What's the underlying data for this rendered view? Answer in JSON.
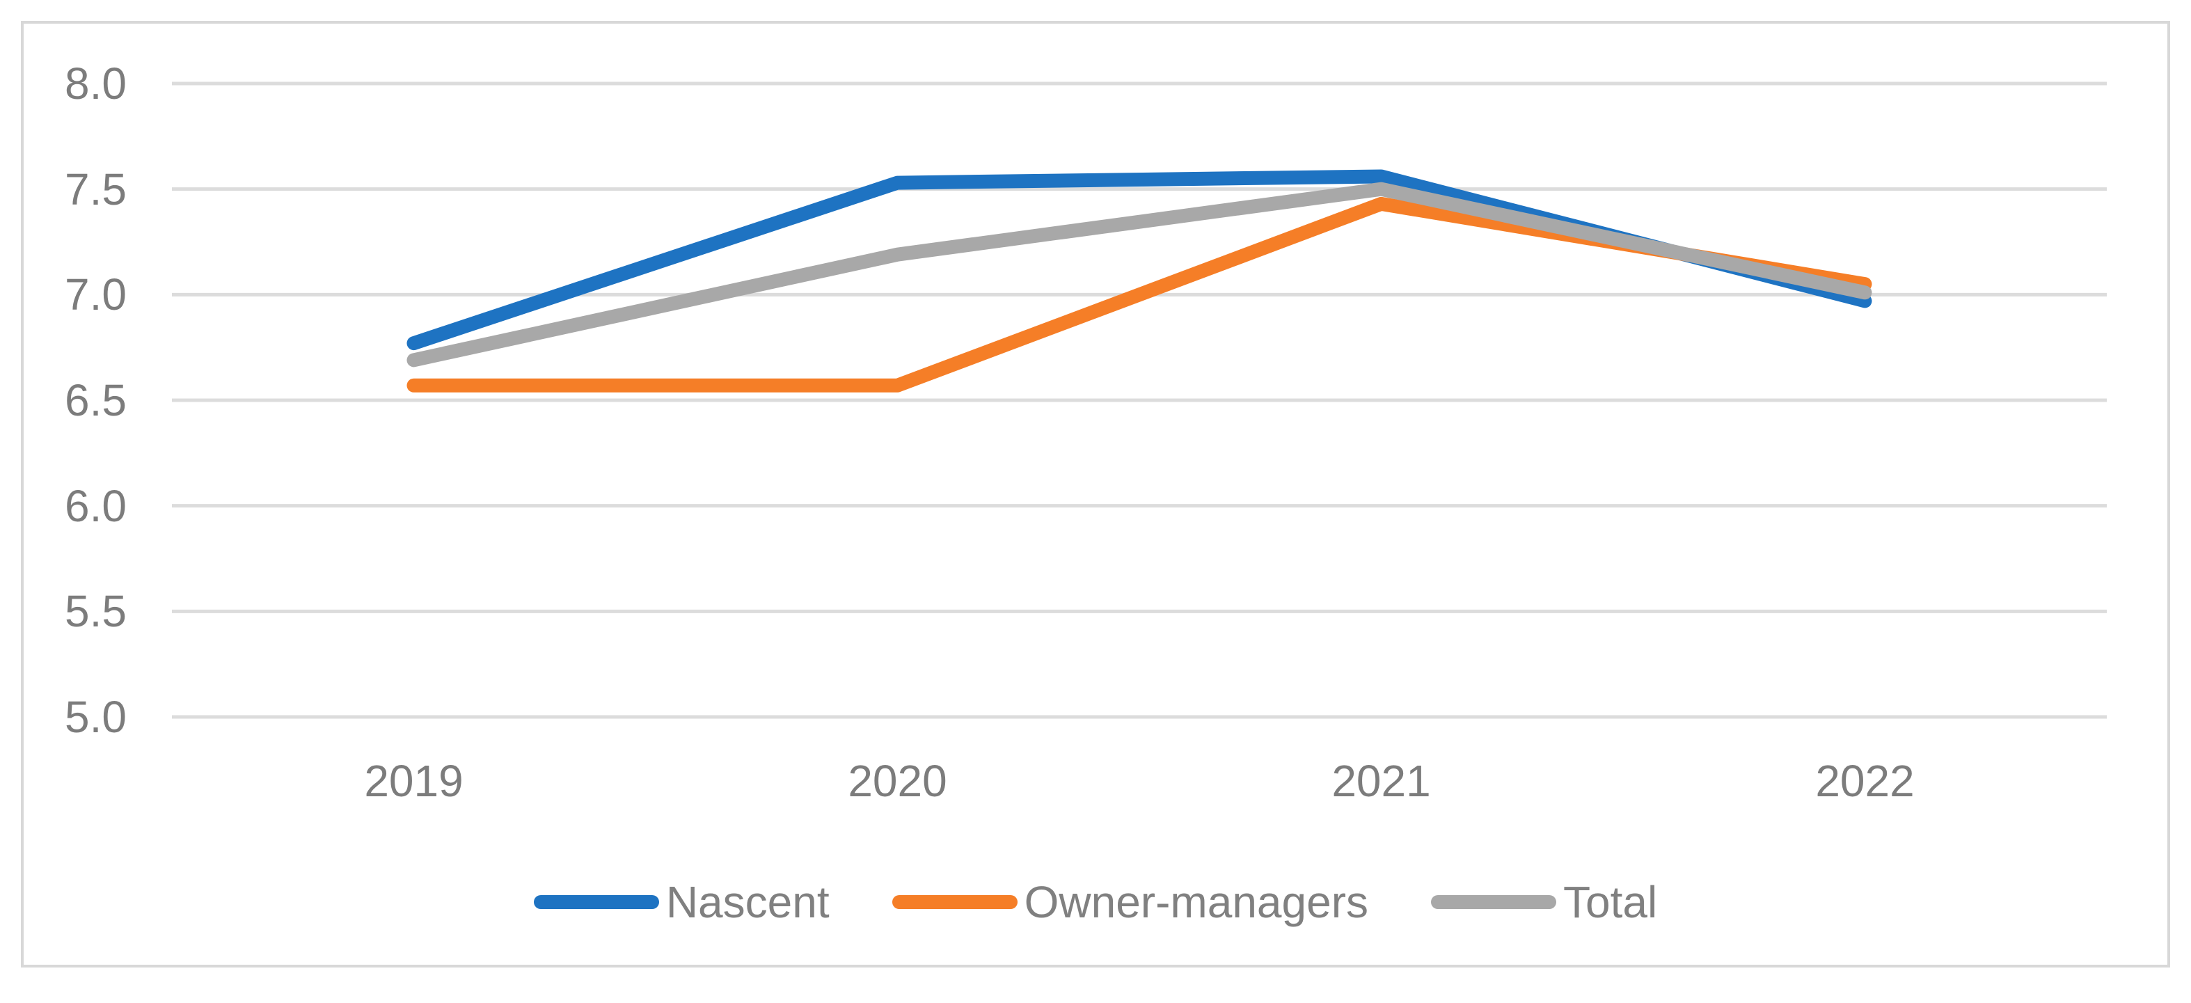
{
  "chart_data": {
    "type": "line",
    "title": "",
    "categories": [
      "2019",
      "2020",
      "2021",
      "2022"
    ],
    "series": [
      {
        "name": "Nascent",
        "color": "#1E73C2",
        "values": [
          6.77,
          7.53,
          7.56,
          6.97
        ]
      },
      {
        "name": "Owner-managers",
        "color": "#F57E27",
        "values": [
          6.57,
          6.57,
          7.43,
          7.05
        ]
      },
      {
        "name": "Total",
        "color": "#A8A8A8",
        "values": [
          6.69,
          7.19,
          7.5,
          7.01
        ]
      }
    ],
    "y_axis": {
      "min": 5.0,
      "max": 8.0,
      "tick_step": 0.5,
      "tick_labels": [
        "8.0",
        "7.5",
        "7.0",
        "6.5",
        "6.0",
        "5.5",
        "5.0"
      ]
    },
    "x_axis": {
      "tick_labels": [
        "2019",
        "2020",
        "2021",
        "2022"
      ]
    },
    "grid": "horizontal",
    "legend_position": "bottom",
    "colors": {
      "gridline": "#DCDCDC",
      "frame_border": "#D8D8D8",
      "axis_text": "#7C7C7C",
      "legend_text": "#808080"
    }
  }
}
